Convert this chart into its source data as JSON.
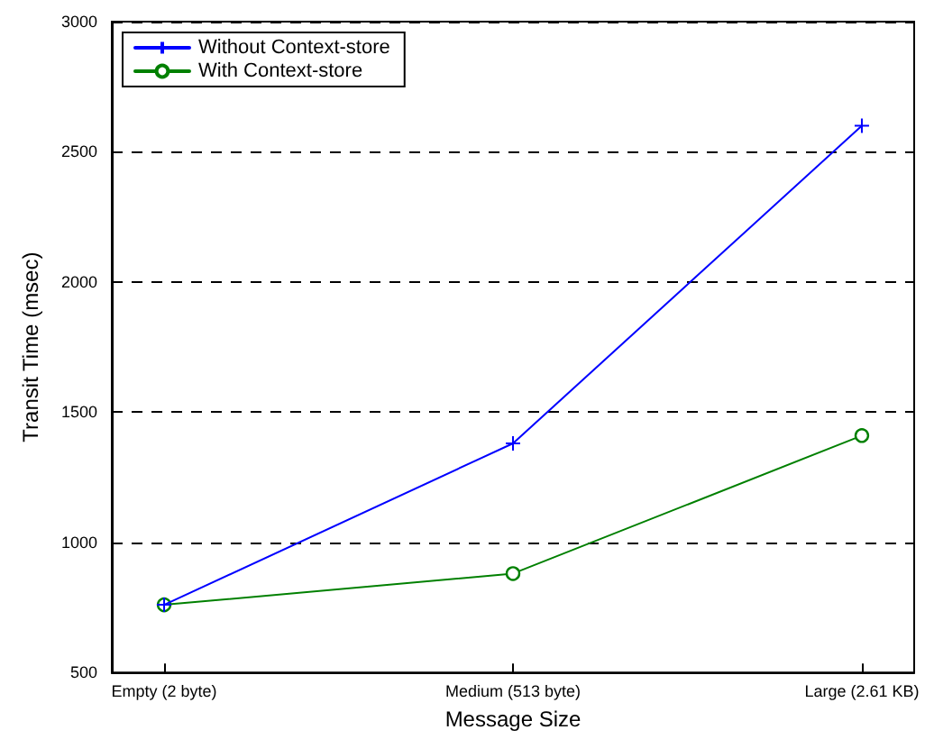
{
  "chart_data": {
    "type": "line",
    "xlabel": "Message Size",
    "ylabel": "Transit Time (msec)",
    "categories": [
      "Empty (2 byte)",
      "Medium (513 byte)",
      "Large (2.61 KB)"
    ],
    "series": [
      {
        "name": "Without Context-store",
        "color": "#0000ff",
        "marker": "cross",
        "values": [
          760,
          1380,
          2600
        ]
      },
      {
        "name": "With Context-store",
        "color": "#008000",
        "marker": "circle",
        "values": [
          760,
          880,
          1410
        ]
      }
    ],
    "ylim": [
      500,
      3000
    ],
    "yticks": [
      500,
      1000,
      1500,
      2000,
      2500,
      3000
    ],
    "grid": "y",
    "legend": "top left",
    "line_style": "solid"
  }
}
